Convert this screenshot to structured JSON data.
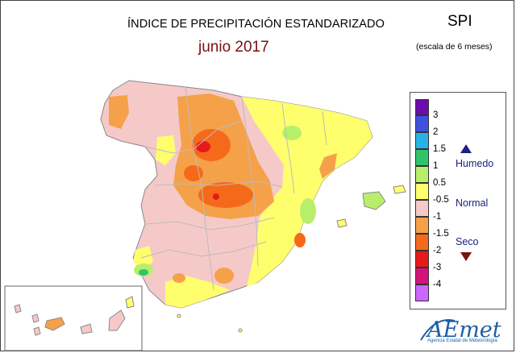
{
  "header": {
    "title": "ÍNDICE DE PRECIPITACIÓN ESTANDARIZADO",
    "subtitle": "junio 2017",
    "index_label": "SPI",
    "scale_label": "(escala de 6 meses)"
  },
  "legend": {
    "swatches": [
      {
        "color": "#6a0dad"
      },
      {
        "color": "#3f51e0"
      },
      {
        "color": "#27b3e8"
      },
      {
        "color": "#2fc46a"
      },
      {
        "color": "#b7ef6a"
      },
      {
        "color": "#ffff6e"
      },
      {
        "color": "#f6c9c9"
      },
      {
        "color": "#f5a14a"
      },
      {
        "color": "#f56a1a"
      },
      {
        "color": "#e61a1a"
      },
      {
        "color": "#d4147a"
      },
      {
        "color": "#cc66ff"
      }
    ],
    "ticks": [
      "3",
      "2",
      "1.5",
      "1",
      "0.5",
      "-0.5",
      "-1",
      "-1.5",
      "-2",
      "-3",
      "-4"
    ],
    "categories": {
      "wet": "Humedo",
      "normal": "Normal",
      "dry": "Seco"
    },
    "wet_arrow_color": "#1a237e",
    "dry_arrow_color": "#7a1010"
  },
  "logo": {
    "name": "AEmet",
    "subtitle": "Agencia Estatal de Meteorología"
  }
}
